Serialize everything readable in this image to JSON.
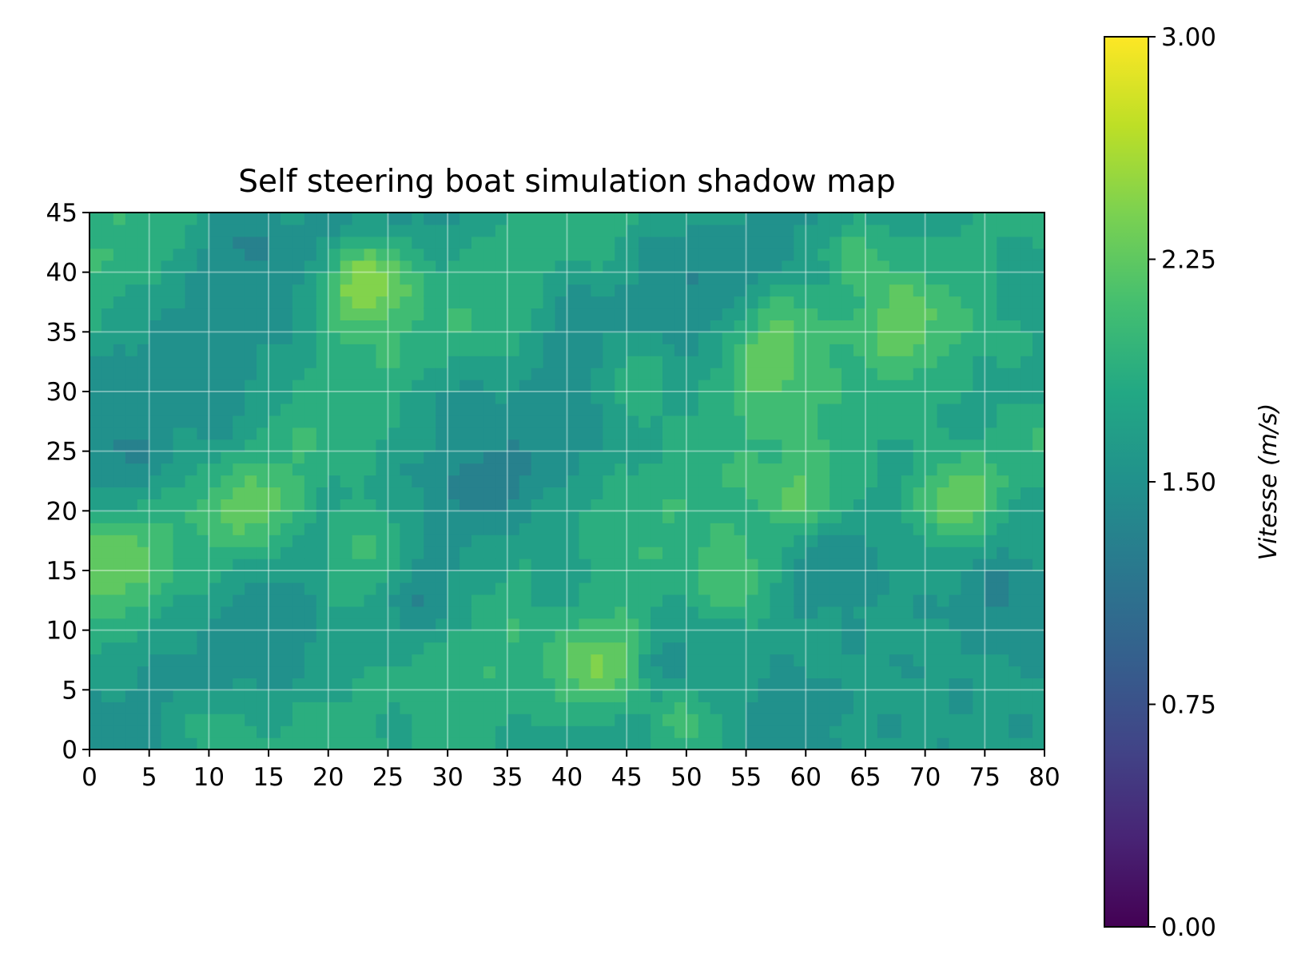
{
  "chart_data": {
    "type": "heatmap",
    "title": "Self steering boat simulation shadow map",
    "xlabel": "",
    "ylabel": "",
    "xlim": [
      0,
      80
    ],
    "ylim": [
      0,
      45
    ],
    "x_ticks": [
      "0",
      "5",
      "10",
      "15",
      "20",
      "25",
      "30",
      "35",
      "40",
      "45",
      "50",
      "55",
      "60",
      "65",
      "70",
      "75",
      "80"
    ],
    "y_ticks": [
      "0",
      "5",
      "10",
      "15",
      "20",
      "25",
      "30",
      "35",
      "40",
      "45"
    ],
    "grid": true,
    "colormap": "viridis",
    "colorbar": {
      "label": "Vitesse (m/s)",
      "range": [
        0,
        3
      ],
      "ticks": [
        "0.00",
        "0.75",
        "1.50",
        "2.25",
        "3.00"
      ]
    },
    "field": {
      "base": 1.62,
      "ridges": [
        {
          "direction": [
            -0.6,
            0.8
          ],
          "offset": 13,
          "amplitude": 0.35,
          "width": 5.5
        },
        {
          "direction": [
            -0.6,
            0.8
          ],
          "offset": -10,
          "amplitude": 0.4,
          "width": 5
        },
        {
          "direction": [
            -0.6,
            0.8
          ],
          "offset": -33,
          "amplitude": 0.35,
          "width": 5
        },
        {
          "direction": [
            -0.6,
            0.8
          ],
          "offset": 1,
          "amplitude": -0.2,
          "width": 6
        },
        {
          "direction": [
            -0.6,
            0.8
          ],
          "offset": -21,
          "amplitude": -0.18,
          "width": 6
        }
      ],
      "peaks": [
        {
          "x": 24,
          "y": 40,
          "value": 2.55
        },
        {
          "x": 22,
          "y": 38,
          "value": 2.4
        },
        {
          "x": 64,
          "y": 42,
          "value": 2.3
        },
        {
          "x": 58,
          "y": 36,
          "value": 2.3
        },
        {
          "x": 56,
          "y": 32,
          "value": 2.3
        },
        {
          "x": 46,
          "y": 31,
          "value": 2.25
        },
        {
          "x": 68,
          "y": 36,
          "value": 2.25
        },
        {
          "x": 2,
          "y": 16,
          "value": 2.3
        },
        {
          "x": 14,
          "y": 20,
          "value": 2.25
        },
        {
          "x": 24,
          "y": 18,
          "value": 2.25
        },
        {
          "x": 22,
          "y": 14,
          "value": 2.2
        },
        {
          "x": 74,
          "y": 22,
          "value": 2.3
        },
        {
          "x": 72,
          "y": 20,
          "value": 2.25
        },
        {
          "x": 60,
          "y": 21,
          "value": 2.2
        },
        {
          "x": 44,
          "y": 8,
          "value": 2.2
        },
        {
          "x": 42,
          "y": 6,
          "value": 2.2
        },
        {
          "x": 50,
          "y": 2,
          "value": 2.25
        },
        {
          "x": 54,
          "y": 14,
          "value": 2.2
        },
        {
          "x": 80,
          "y": 26,
          "value": 2.2
        },
        {
          "x": 10,
          "y": 2,
          "value": 2.1
        }
      ],
      "troughs": [
        {
          "x": 12,
          "y": 43,
          "value": 1.2
        },
        {
          "x": 30,
          "y": 30,
          "value": 1.25
        },
        {
          "x": 40,
          "y": 38,
          "value": 1.25
        },
        {
          "x": 48,
          "y": 42,
          "value": 1.25
        },
        {
          "x": 78,
          "y": 40,
          "value": 1.2
        },
        {
          "x": 40,
          "y": 14,
          "value": 1.2
        },
        {
          "x": 28,
          "y": 12,
          "value": 1.2
        },
        {
          "x": 62,
          "y": 16,
          "value": 1.25
        },
        {
          "x": 76,
          "y": 13,
          "value": 1.25
        },
        {
          "x": 48,
          "y": 8,
          "value": 1.25
        },
        {
          "x": 12,
          "y": 27,
          "value": 1.3
        },
        {
          "x": 4,
          "y": 24,
          "value": 1.3
        },
        {
          "x": 34,
          "y": 22,
          "value": 1.3
        },
        {
          "x": 58,
          "y": 2,
          "value": 1.35
        },
        {
          "x": 26,
          "y": 2,
          "value": 1.35
        }
      ]
    }
  }
}
